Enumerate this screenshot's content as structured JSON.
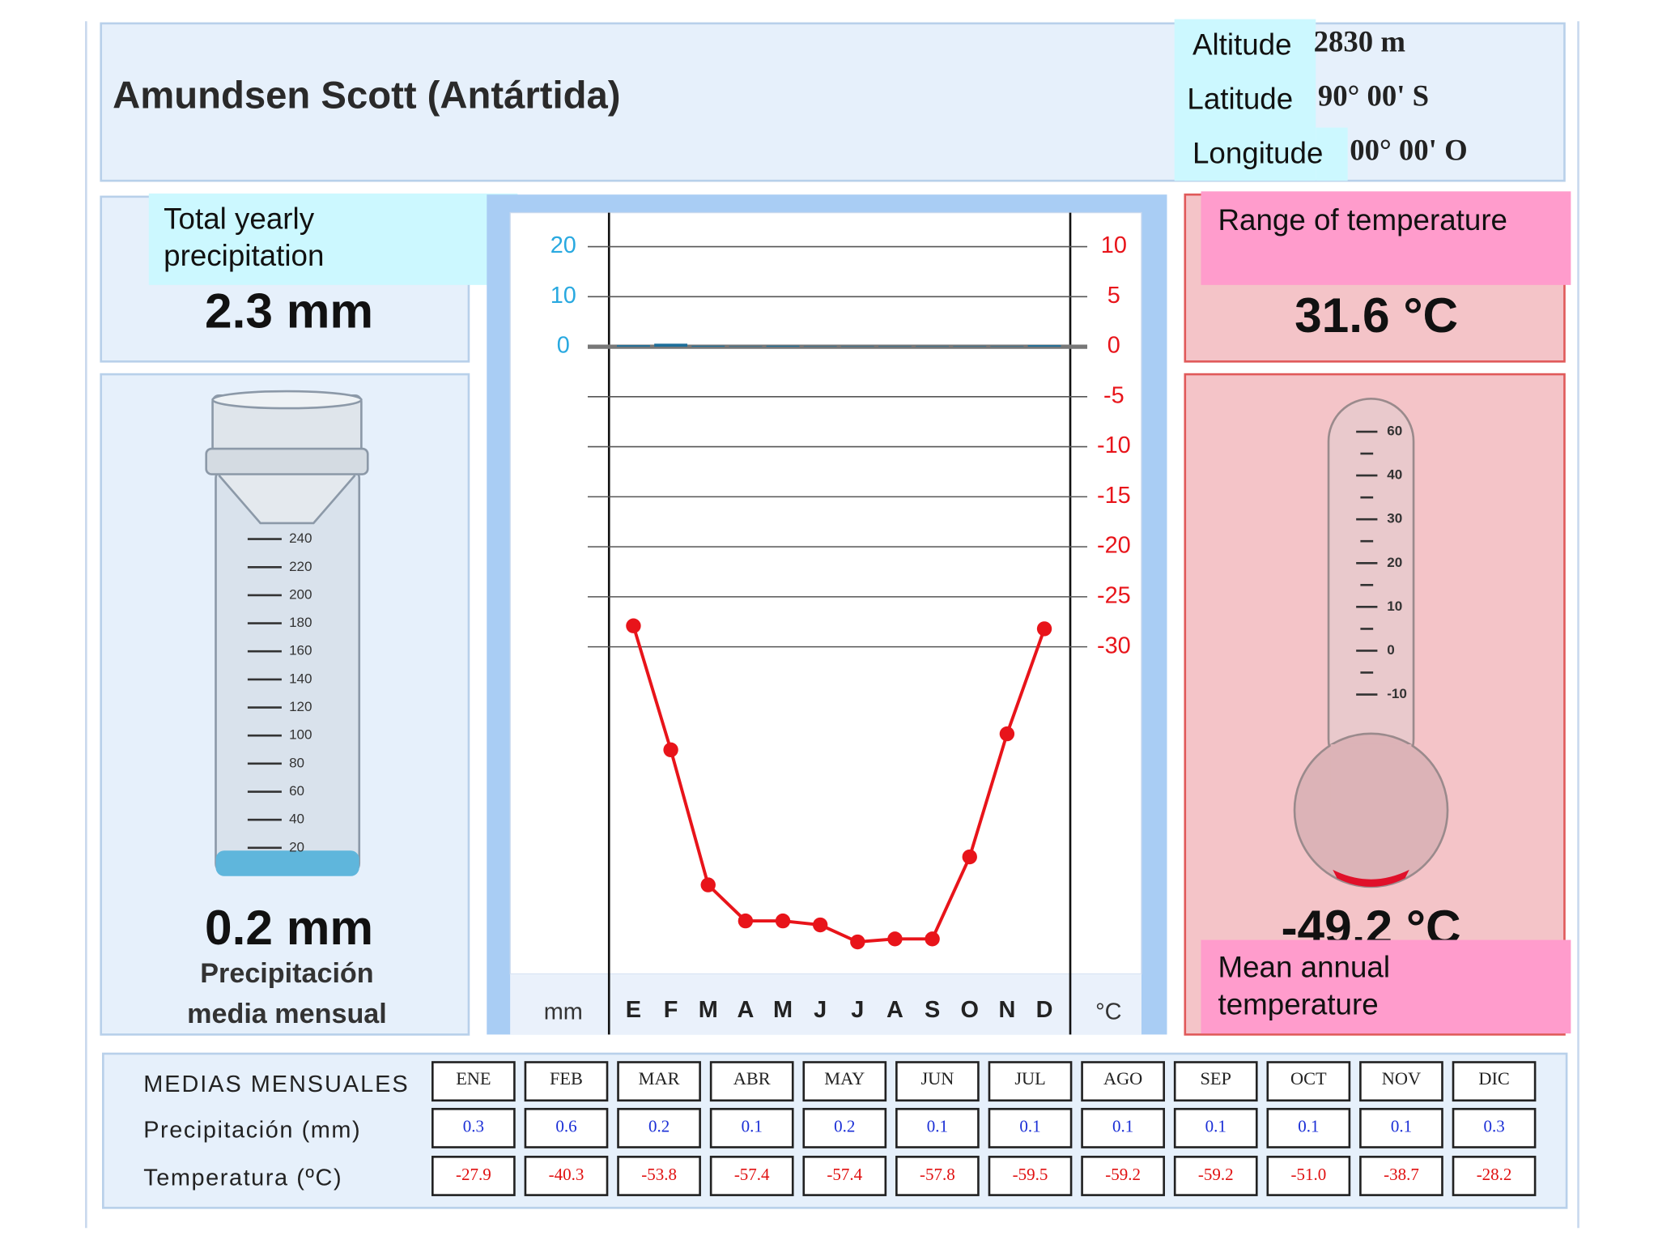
{
  "header": {
    "title": "Amundsen Scott (Antártida)",
    "fields": [
      {
        "label": "Altitude",
        "value": "2830 m"
      },
      {
        "label": "Latitude",
        "value": "90° 00' S"
      },
      {
        "label": "Longitude",
        "value": "00° 00' O"
      }
    ]
  },
  "precipitation_panel": {
    "total_label": "Total yearly precipitation",
    "total": "2.3 mm",
    "gauge_ticks": [
      240,
      220,
      200,
      180,
      160,
      140,
      120,
      100,
      80,
      60,
      40,
      20
    ],
    "mean": "0.2 mm",
    "mean_label": "Precipitación media mensual"
  },
  "temperature_panel": {
    "range_label": "Range of temperature",
    "range": "31.6 °C",
    "thermometer_ticks": [
      60,
      40,
      30,
      20,
      10,
      0,
      -10
    ],
    "mean": "-49.2 °C",
    "mean_label": "Mean annual temperature"
  },
  "chart_data": {
    "type": "line",
    "categories": [
      "E",
      "F",
      "M",
      "A",
      "M",
      "J",
      "J",
      "A",
      "S",
      "O",
      "N",
      "D"
    ],
    "ylabel": "mm",
    "y2label": "°C",
    "ylim": [
      -125.4,
      26.8
    ],
    "yticks": [
      0,
      10,
      20
    ],
    "y2lim": [
      -62.7,
      13.4
    ],
    "y2ticks": [
      10,
      5,
      0,
      -5,
      -10,
      -15,
      -20,
      -25,
      -30
    ],
    "grid": true,
    "series": [
      {
        "type": "bar",
        "axis": "y",
        "color": "#1d6f9a",
        "values": [
          0.3,
          0.6,
          0.2,
          0.1,
          0.2,
          0.1,
          0.1,
          0.1,
          0.1,
          0.1,
          0.1,
          0.3
        ]
      },
      {
        "type": "line",
        "axis": "y2",
        "color": "#e8141a",
        "values": [
          -27.9,
          -40.3,
          -53.8,
          -57.4,
          -57.4,
          -57.8,
          -59.5,
          -59.2,
          -59.2,
          -51.0,
          -38.7,
          -28.2
        ]
      }
    ]
  },
  "table": {
    "title": "MEDIAS MENSUALES",
    "months": [
      "ENE",
      "FEB",
      "MAR",
      "ABR",
      "MAY",
      "JUN",
      "JUL",
      "AGO",
      "SEP",
      "OCT",
      "NOV",
      "DIC"
    ],
    "rows": [
      {
        "label": "Precipitación (mm)",
        "values": [
          "0.3",
          "0.6",
          "0.2",
          "0.1",
          "0.2",
          "0.1",
          "0.1",
          "0.1",
          "0.1",
          "0.1",
          "0.1",
          "0.3"
        ]
      },
      {
        "label": "Temperatura (ºC)",
        "values": [
          "-27.9",
          "-40.3",
          "-53.8",
          "-57.4",
          "-57.4",
          "-57.8",
          "-59.5",
          "-59.2",
          "-59.2",
          "-51.0",
          "-38.7",
          "-28.2"
        ]
      }
    ]
  }
}
